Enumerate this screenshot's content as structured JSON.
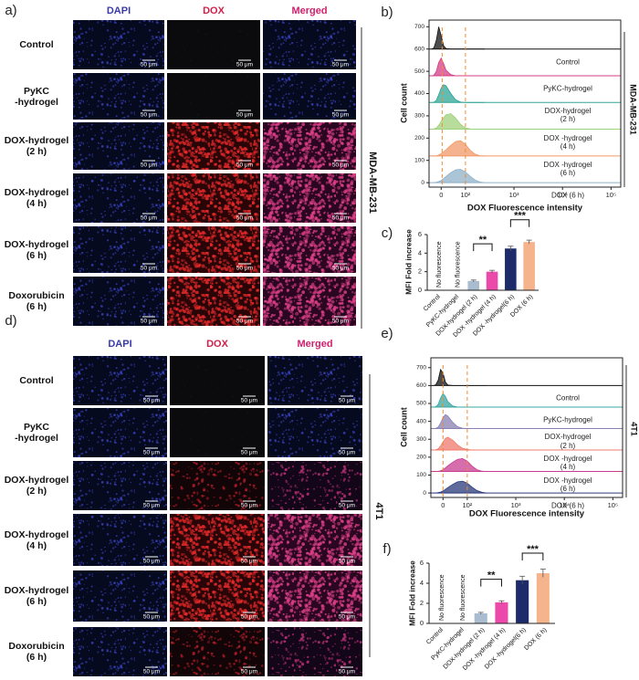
{
  "figure": {
    "panels": [
      {
        "letter": "a)",
        "columns": [
          "DAPI",
          "DOX",
          "Merged"
        ],
        "rows": [
          "Control",
          "PyKC\n-hydrogel",
          "DOX-hydrogel\n(2 h)",
          "DOX-hydrogel\n(4 h)",
          "DOX-hydrogel\n(6 h)",
          "Doxorubicin\n(6 h)"
        ],
        "scale_bar": "50 μm",
        "cell_line": "MDA-MB-231"
      },
      {
        "letter": "d)",
        "columns": [
          "DAPI",
          "DOX",
          "Merged"
        ],
        "rows": [
          "Control",
          "PyKC\n-hydrogel",
          "DOX-hydrogel\n(2 h)",
          "DOX-hydrogel\n(4 h)",
          "DOX-hydrogel\n(6 h)",
          "Doxorubicin\n(6 h)"
        ],
        "scale_bar": "50 μm",
        "cell_line": "4T1"
      }
    ]
  },
  "chart_data": [
    {
      "type": "ridgeline",
      "letter": "b)",
      "cell_line": "MDA-MB-231",
      "x_label": "DOX Fluorescence intensity",
      "y_label": "Cell count",
      "xlim": [
        1.25,
        5.2
      ],
      "ylim": [
        -20,
        730
      ],
      "xticks": [
        {
          "value": 1.5,
          "label": "0"
        },
        {
          "value": 2,
          "label": "10²"
        },
        {
          "value": 3,
          "label": "10³"
        },
        {
          "value": 4,
          "label": "10⁴"
        },
        {
          "value": 5,
          "label": "10⁵"
        }
      ],
      "yticks": [
        0,
        100,
        200,
        300,
        400,
        500,
        600,
        700
      ],
      "vlines": [
        1.52,
        2.0
      ],
      "x": [
        1.3,
        1.35,
        1.4,
        1.45,
        1.5,
        1.55,
        1.6,
        1.7,
        1.8,
        1.9,
        2.0,
        2.1,
        2.2,
        2.3,
        2.4
      ],
      "series": [
        {
          "name": "Control",
          "color": "#111111",
          "values": [
            600,
            605,
            640,
            700,
            660,
            615,
            602,
            600,
            600,
            600,
            600,
            600,
            600,
            600,
            600
          ]
        },
        {
          "name": "PyKC-hydrogel",
          "color": "#d43c86",
          "values": [
            480,
            482,
            500,
            540,
            560,
            535,
            505,
            485,
            480,
            480,
            480,
            480,
            480,
            480,
            480
          ]
        },
        {
          "name": "DOX-hydrogel\n(2 h)",
          "color": "#2ea597",
          "values": [
            360,
            361,
            370,
            395,
            425,
            440,
            435,
            400,
            372,
            362,
            360,
            360,
            360,
            360,
            360
          ]
        },
        {
          "name": "DOX -hydrogel\n(4 h)",
          "color": "#9fd07a",
          "values": [
            240,
            241,
            246,
            258,
            275,
            292,
            305,
            310,
            290,
            262,
            246,
            241,
            240,
            240,
            240
          ]
        },
        {
          "name": "DOX -hydrogel\n(6 h)",
          "color": "#f09a68",
          "values": [
            120,
            120,
            121,
            124,
            130,
            138,
            148,
            168,
            185,
            188,
            172,
            145,
            128,
            121,
            120
          ]
        },
        {
          "name": "DOX (6 h)",
          "color": "#8fb0c8",
          "values": [
            0,
            0,
            2,
            5,
            10,
            18,
            28,
            45,
            58,
            60,
            48,
            28,
            12,
            3,
            0
          ]
        }
      ]
    },
    {
      "type": "bar",
      "letter": "c)",
      "y_label": "MFI Fold increase",
      "categories": [
        "Control",
        "PyKC-hydrogel",
        "DOX-hydrogel (2 h)",
        "DOX -hydrogel (4 h)",
        "DOX -hydrogel(6 h)",
        "DOX (6 h)"
      ],
      "values": [
        null,
        null,
        1.0,
        2.0,
        4.5,
        5.2
      ],
      "errors": [
        null,
        null,
        0.1,
        0.15,
        0.25,
        0.2
      ],
      "colors": [
        null,
        null,
        "#a9bcd0",
        "#ec4aaa",
        "#1d2b6b",
        "#f5b48c"
      ],
      "ylim": [
        0,
        6
      ],
      "yticks": [
        0,
        2,
        4,
        6
      ],
      "annotations": [
        {
          "text": "No fluorescence",
          "category": 0
        },
        {
          "text": "No fluorescence",
          "category": 1
        }
      ],
      "significance": [
        {
          "label": "**",
          "between": [
            2,
            3
          ],
          "y": 5.0
        },
        {
          "label": "***",
          "between": [
            4,
            5
          ],
          "y": 7.6
        }
      ]
    },
    {
      "type": "ridgeline",
      "letter": "e)",
      "cell_line": "4T1",
      "x_label": "DOX Fluorescence intensity",
      "y_label": "Cell count",
      "xlim": [
        1.25,
        5.2
      ],
      "ylim": [
        -25,
        755
      ],
      "xticks": [
        {
          "value": 1.5,
          "label": "0"
        },
        {
          "value": 2,
          "label": "10²"
        },
        {
          "value": 3,
          "label": "10³"
        },
        {
          "value": 4,
          "label": "10⁴"
        },
        {
          "value": 5,
          "label": "10⁵"
        }
      ],
      "yticks": [
        0,
        100,
        200,
        300,
        400,
        500,
        600,
        700
      ],
      "vlines": [
        1.5,
        2.0
      ],
      "x": [
        1.3,
        1.35,
        1.4,
        1.45,
        1.5,
        1.55,
        1.6,
        1.7,
        1.8,
        1.9,
        2.0,
        2.1,
        2.2,
        2.3,
        2.4
      ],
      "series": [
        {
          "name": "Control",
          "color": "#111111",
          "values": [
            600,
            604,
            630,
            690,
            670,
            620,
            603,
            600,
            600,
            600,
            600,
            600,
            600,
            600,
            600
          ]
        },
        {
          "name": "PyKC-hydrogel",
          "color": "#3aa6a0",
          "values": [
            480,
            482,
            495,
            530,
            555,
            540,
            510,
            486,
            480,
            480,
            480,
            480,
            480,
            480,
            480
          ]
        },
        {
          "name": "DOX-hydrogel\n(2 h)",
          "color": "#8a80b2",
          "values": [
            360,
            361,
            368,
            390,
            420,
            438,
            430,
            395,
            370,
            362,
            360,
            360,
            360,
            360,
            360
          ]
        },
        {
          "name": "DOX -hydrogel\n(4 h)",
          "color": "#f07a6c",
          "values": [
            240,
            241,
            246,
            262,
            285,
            305,
            312,
            295,
            268,
            250,
            243,
            240,
            240,
            240,
            240
          ]
        },
        {
          "name": "DOX -hydrogel\n(6 h)",
          "color": "#c83c90",
          "values": [
            120,
            120,
            121,
            124,
            130,
            140,
            152,
            172,
            188,
            192,
            178,
            150,
            130,
            122,
            120
          ]
        },
        {
          "name": "DOX (6 h)",
          "color": "#2a3a7a",
          "values": [
            0,
            0,
            2,
            5,
            11,
            20,
            30,
            48,
            62,
            66,
            55,
            32,
            14,
            4,
            0
          ]
        }
      ]
    },
    {
      "type": "bar",
      "letter": "f)",
      "y_label": "MFI Fold increase",
      "categories": [
        "Control",
        "PyKC-hydrogel",
        "DOX-hydrogel (2 h)",
        "DOX -hydrogel (4 h)",
        "DOX -hydrogel(6 h)",
        "DOX (6 h)"
      ],
      "values": [
        null,
        null,
        1.0,
        2.1,
        4.3,
        5.0
      ],
      "errors": [
        null,
        null,
        0.1,
        0.15,
        0.4,
        0.4
      ],
      "colors": [
        null,
        null,
        "#a9bcd0",
        "#ec4aaa",
        "#1d2b6b",
        "#f5b48c"
      ],
      "ylim": [
        0,
        6
      ],
      "yticks": [
        0,
        2,
        4,
        6
      ],
      "annotations": [
        {
          "text": "No fluorescence",
          "category": 0
        },
        {
          "text": "No fluorescence",
          "category": 1
        }
      ],
      "significance": [
        {
          "label": "**",
          "between": [
            2,
            3
          ],
          "y": 4.4
        },
        {
          "label": "***",
          "between": [
            4,
            5
          ],
          "y": 7.0
        }
      ]
    }
  ]
}
